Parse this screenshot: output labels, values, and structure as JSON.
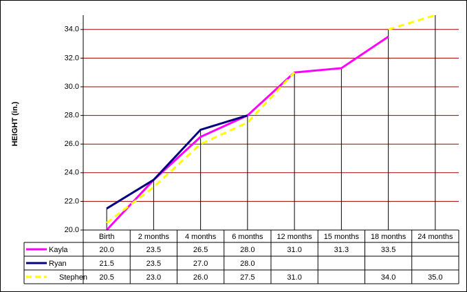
{
  "chart_data": {
    "type": "line",
    "y_label": "HEIGHT (in.)",
    "categories": [
      "Birth",
      "2 months",
      "4 months",
      "6 months",
      "12 months",
      "15 months",
      "18 months",
      "24 months"
    ],
    "series": [
      {
        "name": "Kayla",
        "color": "#ff00ff",
        "dashed": false,
        "values": [
          20,
          23.5,
          26.5,
          28,
          31,
          31.3,
          33.5,
          null
        ],
        "value_labels": [
          "20.0",
          "23.5",
          "26.5",
          "28.0",
          "31.0",
          "31.3",
          "33.5",
          null
        ]
      },
      {
        "name": "Ryan",
        "color": "#000080",
        "dashed": false,
        "values": [
          21.5,
          23.5,
          27,
          28,
          null,
          null,
          null,
          null
        ],
        "value_labels": [
          "21.5",
          "23.5",
          "27.0",
          "28.0",
          null,
          null,
          null,
          null
        ]
      },
      {
        "name": "Stephen",
        "color": "#ffff00",
        "dashed": true,
        "values": [
          20.5,
          23,
          26,
          27.5,
          31,
          null,
          34,
          35
        ],
        "value_labels": [
          "20.5",
          "23.0",
          "26.0",
          "27.5",
          "31.0",
          null,
          "34.0",
          "35.0"
        ]
      }
    ],
    "ylim": [
      20,
      35
    ],
    "yticks": [
      {
        "value": 20,
        "label": "20.0"
      },
      {
        "value": 22,
        "label": "22.0"
      },
      {
        "value": 24,
        "label": "24.0"
      },
      {
        "value": 26,
        "label": "26.0"
      },
      {
        "value": 28,
        "label": "28.0"
      },
      {
        "value": 30,
        "label": "30.0"
      },
      {
        "value": 32,
        "label": "32.0"
      },
      {
        "value": 34,
        "label": "34.0"
      }
    ],
    "grid": true,
    "grid_color": "#990000",
    "drop_lines": true,
    "data_table": true
  }
}
